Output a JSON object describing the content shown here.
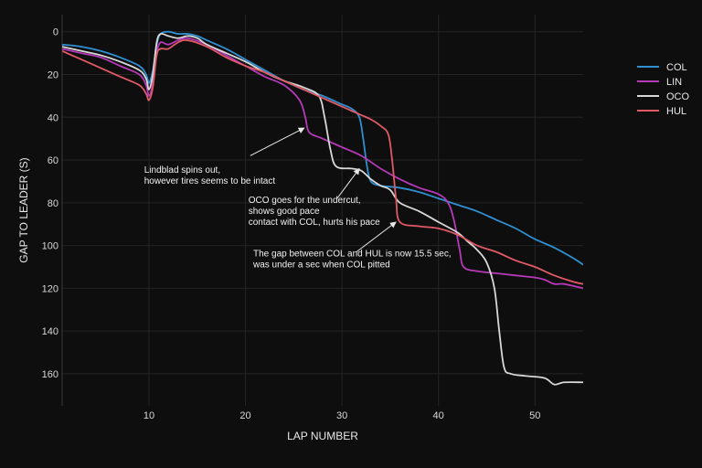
{
  "chart_data": {
    "type": "line",
    "title": "",
    "xlabel": "LAP NUMBER",
    "ylabel": "GAP TO LEADER (S)",
    "xlim": [
      1,
      55
    ],
    "ylim": [
      175,
      -8
    ],
    "y_reversed": true,
    "x_ticks": [
      10,
      20,
      30,
      40,
      50
    ],
    "y_ticks": [
      0,
      20,
      40,
      60,
      80,
      100,
      120,
      140,
      160
    ],
    "grid": true,
    "legend_position": "top-right",
    "series": [
      {
        "name": "COL",
        "color": "#2f8fd0",
        "points": [
          [
            1,
            6
          ],
          [
            3,
            7
          ],
          [
            5,
            9
          ],
          [
            7,
            12
          ],
          [
            9,
            16
          ],
          [
            9.7,
            20
          ],
          [
            10,
            24
          ],
          [
            10.4,
            18
          ],
          [
            10.8,
            6
          ],
          [
            11.2,
            1
          ],
          [
            12,
            0
          ],
          [
            13,
            1
          ],
          [
            14,
            1
          ],
          [
            15,
            2
          ],
          [
            16,
            4
          ],
          [
            18,
            8
          ],
          [
            20,
            13
          ],
          [
            22,
            18
          ],
          [
            24,
            23
          ],
          [
            26,
            27
          ],
          [
            28,
            30
          ],
          [
            30,
            34
          ],
          [
            31,
            36
          ],
          [
            31.8,
            40
          ],
          [
            32.2,
            50
          ],
          [
            32.6,
            63
          ],
          [
            33,
            70
          ],
          [
            34,
            72
          ],
          [
            36,
            73
          ],
          [
            38,
            75
          ],
          [
            40,
            78
          ],
          [
            42,
            81
          ],
          [
            44,
            84
          ],
          [
            46,
            88
          ],
          [
            48,
            92
          ],
          [
            50,
            97
          ],
          [
            52,
            101
          ],
          [
            54,
            106
          ],
          [
            55,
            109
          ]
        ]
      },
      {
        "name": "LIN",
        "color": "#b63ab8",
        "points": [
          [
            1,
            8
          ],
          [
            3,
            10
          ],
          [
            5,
            12
          ],
          [
            7,
            16
          ],
          [
            9,
            20
          ],
          [
            9.7,
            25
          ],
          [
            10,
            30
          ],
          [
            10.4,
            24
          ],
          [
            10.8,
            10
          ],
          [
            11.2,
            5
          ],
          [
            12,
            6
          ],
          [
            13,
            4
          ],
          [
            14,
            3
          ],
          [
            16,
            6
          ],
          [
            18,
            11
          ],
          [
            20,
            16
          ],
          [
            22,
            21
          ],
          [
            24,
            25
          ],
          [
            25.6,
            32
          ],
          [
            26.2,
            40
          ],
          [
            26.6,
            47
          ],
          [
            28,
            50
          ],
          [
            30,
            54
          ],
          [
            32,
            58
          ],
          [
            34,
            64
          ],
          [
            36,
            69
          ],
          [
            38,
            73
          ],
          [
            40,
            76
          ],
          [
            41,
            80
          ],
          [
            41.6,
            88
          ],
          [
            42.2,
            102
          ],
          [
            42.6,
            110
          ],
          [
            44,
            112
          ],
          [
            46,
            113
          ],
          [
            48,
            114
          ],
          [
            50,
            115
          ],
          [
            51,
            116
          ],
          [
            52,
            118
          ],
          [
            53,
            118
          ],
          [
            55,
            120
          ]
        ]
      },
      {
        "name": "OCO",
        "color": "#d8d8d8",
        "points": [
          [
            1,
            7
          ],
          [
            3,
            9
          ],
          [
            5,
            11
          ],
          [
            7,
            14
          ],
          [
            9,
            18
          ],
          [
            9.7,
            22
          ],
          [
            10,
            27
          ],
          [
            10.4,
            20
          ],
          [
            10.8,
            5
          ],
          [
            11.2,
            1
          ],
          [
            12,
            2
          ],
          [
            13,
            3
          ],
          [
            14,
            2
          ],
          [
            15,
            3
          ],
          [
            16,
            6
          ],
          [
            18,
            10
          ],
          [
            20,
            14
          ],
          [
            22,
            19
          ],
          [
            24,
            23
          ],
          [
            26,
            26
          ],
          [
            27.6,
            30
          ],
          [
            28.2,
            40
          ],
          [
            28.8,
            55
          ],
          [
            29.4,
            63
          ],
          [
            31,
            64
          ],
          [
            32,
            65
          ],
          [
            33,
            69
          ],
          [
            34,
            72
          ],
          [
            35,
            74
          ],
          [
            36,
            80
          ],
          [
            38,
            84
          ],
          [
            40,
            89
          ],
          [
            42,
            94
          ],
          [
            43,
            98
          ],
          [
            44,
            102
          ],
          [
            45,
            108
          ],
          [
            45.8,
            120
          ],
          [
            46.3,
            140
          ],
          [
            46.8,
            157
          ],
          [
            47.5,
            160
          ],
          [
            49,
            161
          ],
          [
            51,
            162
          ],
          [
            52,
            165
          ],
          [
            53,
            164
          ],
          [
            55,
            164
          ]
        ]
      },
      {
        "name": "HUL",
        "color": "#e05a66",
        "points": [
          [
            1,
            9
          ],
          [
            3,
            13
          ],
          [
            5,
            17
          ],
          [
            7,
            21
          ],
          [
            9,
            25
          ],
          [
            9.7,
            29
          ],
          [
            10,
            32
          ],
          [
            10.4,
            26
          ],
          [
            10.8,
            11
          ],
          [
            11.2,
            8
          ],
          [
            12,
            8
          ],
          [
            13,
            5
          ],
          [
            14,
            4
          ],
          [
            16,
            7
          ],
          [
            18,
            12
          ],
          [
            20,
            16
          ],
          [
            22,
            19
          ],
          [
            24,
            23
          ],
          [
            26,
            27
          ],
          [
            28,
            31
          ],
          [
            30,
            35
          ],
          [
            31,
            37
          ],
          [
            32,
            39
          ],
          [
            33,
            41
          ],
          [
            34,
            44
          ],
          [
            34.8,
            48
          ],
          [
            35.2,
            60
          ],
          [
            35.6,
            78
          ],
          [
            36,
            89
          ],
          [
            38,
            91
          ],
          [
            40,
            92
          ],
          [
            42,
            95
          ],
          [
            44,
            100
          ],
          [
            46,
            103
          ],
          [
            48,
            107
          ],
          [
            50,
            110
          ],
          [
            52,
            114
          ],
          [
            54,
            117
          ],
          [
            55,
            118
          ]
        ]
      }
    ],
    "annotations": [
      {
        "lines": [
          "Lindblad spins out,",
          "however tires seems to be intact"
        ],
        "text_at": [
          9.5,
          66
        ],
        "arrow_from": [
          20.5,
          58
        ],
        "arrow_to": [
          26.1,
          45
        ]
      },
      {
        "lines": [
          "OCO goes for the undercut,",
          "shows good pace",
          "contact with COL, hurts his pace"
        ],
        "text_at": [
          20.3,
          80
        ],
        "arrow_from": [
          29.5,
          78
        ],
        "arrow_to": [
          31.8,
          64
        ]
      },
      {
        "lines": [
          "The gap between COL and HUL is now 15.5 sec,",
          "was under a sec when COL pitted"
        ],
        "text_at": [
          20.8,
          105
        ],
        "arrow_from": [
          31.5,
          103
        ],
        "arrow_to": [
          35.6,
          89
        ]
      }
    ]
  }
}
